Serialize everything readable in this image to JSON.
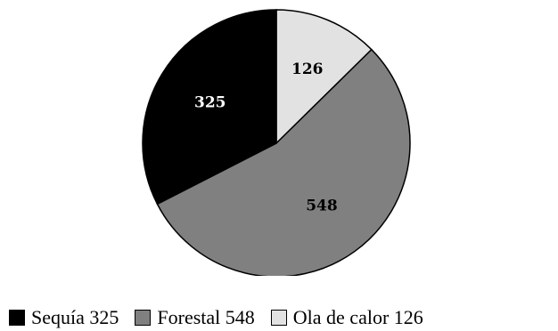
{
  "chart_data": {
    "type": "pie",
    "slices": [
      {
        "label": "Ola de calor",
        "value": 126,
        "color": "#e2e2e2",
        "legend": "Ola de calor 126"
      },
      {
        "label": "Forestal",
        "value": 548,
        "color": "#808080",
        "legend": "Forestal 548"
      },
      {
        "label": "Sequía",
        "value": 325,
        "color": "#000000",
        "legend": "Sequía 325"
      }
    ],
    "legend_order": [
      "Sequía",
      "Forestal",
      "Ola de calor"
    ],
    "legend_position": "bottom",
    "label_color_on_dark": "#ffffff",
    "label_color_on_light": "#000000"
  }
}
